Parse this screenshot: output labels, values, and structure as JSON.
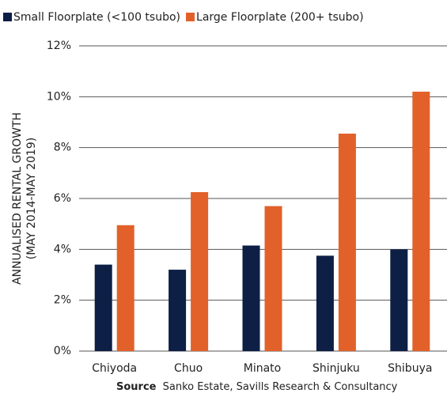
{
  "chart_data": {
    "type": "bar",
    "categories": [
      "Chiyoda",
      "Chuo",
      "Minato",
      "Shinjuku",
      "Shibuya"
    ],
    "series": [
      {
        "name": "Small Floorplate (<100 tsubo)",
        "color": "#0d1f45",
        "values": [
          3.4,
          3.2,
          4.15,
          3.75,
          4.0
        ]
      },
      {
        "name": "Large Floorplate (200+ tsubo)",
        "color": "#e2612a",
        "values": [
          4.95,
          6.25,
          5.7,
          8.55,
          10.2
        ]
      }
    ],
    "ylabel": [
      "ANNUALISED RENTAL GROWTH",
      "(MAY 2014-MAY 2019)"
    ],
    "ylim": [
      0,
      12
    ],
    "yticks": [
      {
        "value": 0,
        "label": "0%"
      },
      {
        "value": 2,
        "label": "2%"
      },
      {
        "value": 4,
        "label": "4%"
      },
      {
        "value": 6,
        "label": "6%"
      },
      {
        "value": 8,
        "label": "8%"
      },
      {
        "value": 10,
        "label": "10%"
      },
      {
        "value": 12,
        "label": "12%"
      }
    ],
    "grid": true,
    "legend": "top",
    "source": {
      "label": "Source",
      "text": "Sanko Estate, Savills Research & Consultancy"
    }
  }
}
